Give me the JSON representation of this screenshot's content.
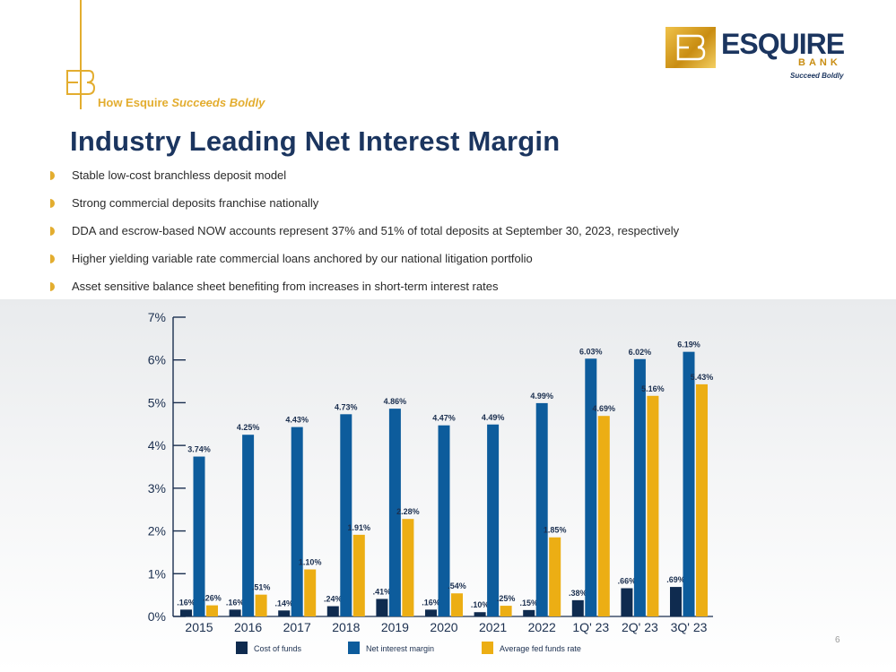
{
  "header": {
    "tagline_prefix": "How Esquire",
    "tagline_italic": "Succeeds Boldly",
    "logo_word": "ESQUIRE",
    "logo_bank": "BANK",
    "logo_tag": "Succeed Boldly",
    "monogram": "EB"
  },
  "title": "Industry Leading Net Interest Margin",
  "bullets": [
    "Stable low-cost branchless deposit model",
    "Strong commercial deposits franchise nationally",
    "DDA and escrow-based NOW accounts represent 37% and 51% of total deposits at September 30, 2023, respectively",
    "Higher yielding variable rate commercial loans anchored by our national litigation portfolio",
    "Asset sensitive balance sheet benefiting from increases in short-term interest rates"
  ],
  "page_number": "6",
  "colors": {
    "accent": "#e3ad2f",
    "title": "#1b355f",
    "cost_of_funds": "#0f2b4f",
    "net_interest_margin": "#0d5c9c",
    "fed_funds": "#ecae14"
  },
  "chart_data": {
    "type": "bar",
    "categories": [
      "2015",
      "2016",
      "2017",
      "2018",
      "2019",
      "2020",
      "2021",
      "2022",
      "1Q' 23",
      "2Q' 23",
      "3Q' 23"
    ],
    "series": [
      {
        "name": "Cost of funds",
        "color": "#0f2b4f",
        "values": [
          0.16,
          0.16,
          0.14,
          0.24,
          0.41,
          0.16,
          0.1,
          0.15,
          0.38,
          0.66,
          0.69
        ],
        "labels": [
          ".16%",
          ".16%",
          ".14%",
          ".24%",
          ".41%",
          ".16%",
          ".10%",
          ".15%",
          ".38%",
          ".66%",
          ".69%"
        ]
      },
      {
        "name": "Net interest margin",
        "color": "#0d5c9c",
        "values": [
          3.74,
          4.25,
          4.43,
          4.73,
          4.86,
          4.47,
          4.49,
          4.99,
          6.03,
          6.02,
          6.19
        ],
        "labels": [
          "3.74%",
          "4.25%",
          "4.43%",
          "4.73%",
          "4.86%",
          "4.47%",
          "4.49%",
          "4.99%",
          "6.03%",
          "6.02%",
          "6.19%"
        ]
      },
      {
        "name": "Average fed funds rate",
        "color": "#ecae14",
        "values": [
          0.26,
          0.51,
          1.1,
          1.91,
          2.28,
          0.54,
          0.25,
          1.85,
          4.69,
          5.16,
          5.43
        ],
        "labels": [
          ".26%",
          ".51%",
          "1.10%",
          "1.91%",
          "2.28%",
          ".54%",
          ".25%",
          "1.85%",
          "4.69%",
          "5.16%",
          "5.43%"
        ]
      }
    ],
    "ylim": [
      0,
      7
    ],
    "yticks": [
      "0%",
      "1%",
      "2%",
      "3%",
      "4%",
      "5%",
      "6%",
      "7%"
    ],
    "grid": false,
    "legend": "bottom"
  }
}
